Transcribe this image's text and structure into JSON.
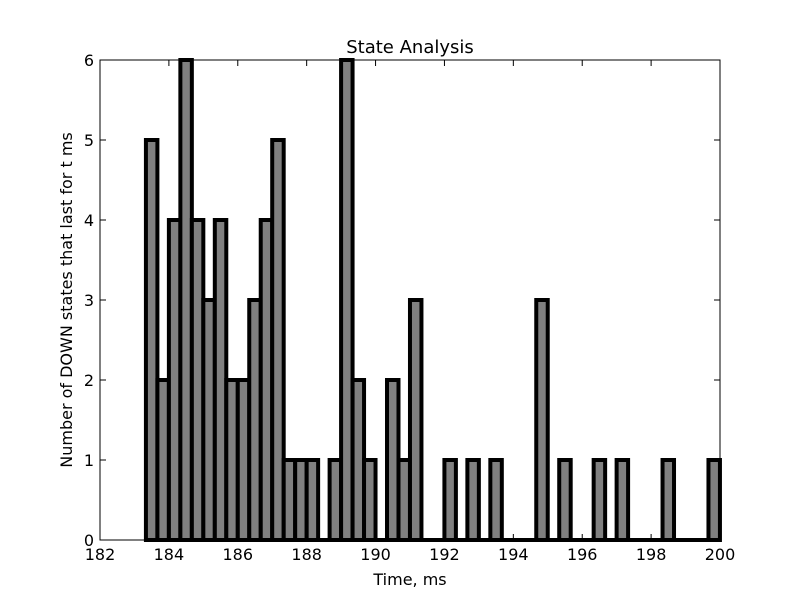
{
  "chart_data": {
    "type": "bar",
    "title": "State Analysis",
    "xlabel": "Time, ms",
    "ylabel": "Number of DOWN states that last for t ms",
    "xlim": [
      182,
      200
    ],
    "ylim": [
      0,
      6
    ],
    "xticks": [
      182,
      184,
      186,
      188,
      190,
      192,
      194,
      196,
      198,
      200
    ],
    "yticks": [
      0,
      1,
      2,
      3,
      4,
      5,
      6
    ],
    "bin_width": 0.3333,
    "bin_start": 183.3333,
    "counts": [
      5,
      2,
      4,
      6,
      4,
      3,
      4,
      2,
      2,
      3,
      4,
      5,
      1,
      1,
      1,
      0,
      1,
      6,
      2,
      1,
      0,
      2,
      1,
      3,
      0,
      0,
      1,
      0,
      1,
      0,
      1,
      0,
      0,
      0,
      3,
      0,
      1,
      0,
      0,
      1,
      0,
      1,
      0,
      0,
      0,
      1,
      0,
      0,
      0,
      1
    ],
    "bar_color": "#808080",
    "edge_color": "#000000",
    "grid": false,
    "legend": "none"
  }
}
